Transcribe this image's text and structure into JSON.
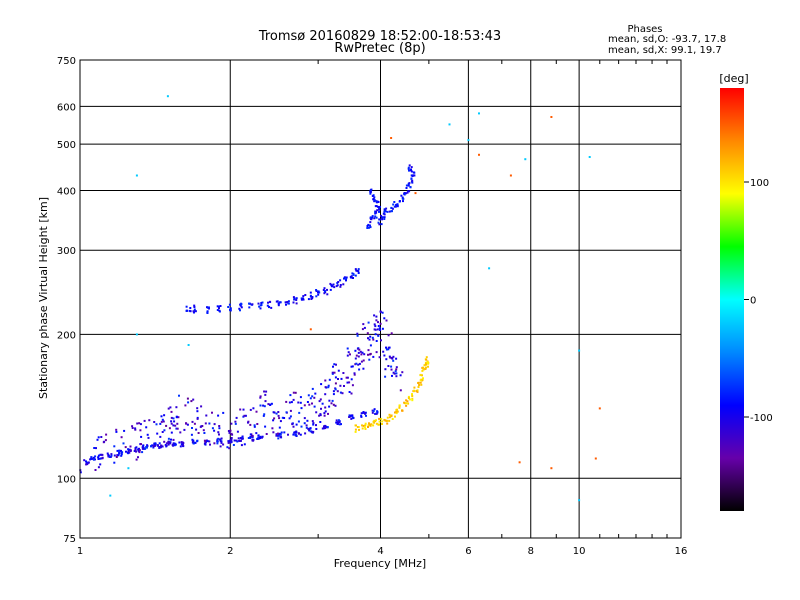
{
  "chart_data": {
    "type": "scatter",
    "title": "Tromsø 20160829 18:52:00-18:53:43",
    "subtitle": "RwPretec (8p)",
    "phases": {
      "heading": "Phases",
      "line_o": "mean, sd,O: -93.7, 17.8",
      "line_x": "mean, sd,X:  99.1, 19.7"
    },
    "xlabel": "Frequency [MHz]",
    "ylabel": "Stationary phase Virtual Height [km]",
    "xscale": "log",
    "yscale": "log",
    "xlim": [
      1,
      16
    ],
    "ylim": [
      75,
      750
    ],
    "xticks": [
      1,
      2,
      4,
      6,
      8,
      10,
      16
    ],
    "yticks": [
      75,
      100,
      200,
      300,
      400,
      500,
      600,
      750
    ],
    "grid": true,
    "colorbar": {
      "label": "[deg]",
      "range": [
        -180,
        180
      ],
      "ticks": [
        -100,
        0,
        100
      ],
      "colors": [
        "#000000",
        "#6600aa",
        "#0000ff",
        "#0088ff",
        "#00ffff",
        "#00ff00",
        "#ffff00",
        "#ff8800",
        "#ff0000"
      ]
    },
    "series": [
      {
        "shape": "dots",
        "phase": -95,
        "points": [
          [
            1.0,
            104
          ],
          [
            1.03,
            108
          ],
          [
            1.06,
            110
          ],
          [
            1.1,
            111
          ],
          [
            1.15,
            112
          ],
          [
            1.2,
            113
          ],
          [
            1.25,
            114
          ],
          [
            1.3,
            115
          ],
          [
            1.35,
            116
          ],
          [
            1.4,
            117
          ],
          [
            1.45,
            117
          ],
          [
            1.5,
            118
          ],
          [
            1.55,
            118
          ],
          [
            1.6,
            118
          ],
          [
            1.7,
            119
          ],
          [
            1.8,
            119
          ],
          [
            1.9,
            120
          ],
          [
            2.0,
            120
          ],
          [
            2.1,
            121
          ],
          [
            2.2,
            121
          ],
          [
            2.3,
            122
          ],
          [
            2.5,
            123
          ],
          [
            2.7,
            124
          ],
          [
            2.9,
            126
          ],
          [
            3.1,
            128
          ],
          [
            3.3,
            131
          ],
          [
            3.5,
            134
          ],
          [
            3.7,
            136
          ],
          [
            3.9,
            138
          ]
        ]
      },
      {
        "shape": "spread",
        "phase": -105,
        "points": [
          [
            1.1,
            114
          ],
          [
            1.2,
            117
          ],
          [
            1.3,
            120
          ],
          [
            1.35,
            122
          ],
          [
            1.45,
            125
          ],
          [
            1.5,
            128
          ],
          [
            1.55,
            132
          ],
          [
            1.6,
            138
          ],
          [
            1.7,
            135
          ],
          [
            1.8,
            130
          ],
          [
            1.9,
            126
          ],
          [
            2.0,
            124
          ],
          [
            2.1,
            128
          ],
          [
            2.2,
            132
          ],
          [
            2.3,
            140
          ],
          [
            2.4,
            136
          ],
          [
            2.5,
            131
          ],
          [
            2.6,
            135
          ],
          [
            2.7,
            140
          ],
          [
            2.8,
            134
          ],
          [
            2.9,
            138
          ],
          [
            3.0,
            142
          ],
          [
            3.1,
            148
          ],
          [
            3.2,
            155
          ],
          [
            3.3,
            160
          ],
          [
            3.4,
            165
          ],
          [
            3.5,
            172
          ],
          [
            3.6,
            178
          ],
          [
            3.7,
            185
          ],
          [
            3.8,
            195
          ],
          [
            3.9,
            200
          ],
          [
            4.0,
            205
          ],
          [
            4.1,
            190
          ],
          [
            4.2,
            175
          ],
          [
            4.3,
            165
          ]
        ]
      },
      {
        "shape": "trace",
        "phase": 110,
        "points": [
          [
            3.6,
            127
          ],
          [
            3.7,
            128
          ],
          [
            3.8,
            129
          ],
          [
            3.9,
            130
          ],
          [
            4.0,
            131
          ],
          [
            4.1,
            132
          ],
          [
            4.2,
            134
          ],
          [
            4.3,
            137
          ],
          [
            4.4,
            140
          ],
          [
            4.5,
            144
          ],
          [
            4.6,
            148
          ],
          [
            4.7,
            153
          ],
          [
            4.8,
            158
          ],
          [
            4.85,
            163
          ],
          [
            4.9,
            168
          ],
          [
            4.95,
            172
          ],
          [
            4.95,
            176
          ]
        ]
      },
      {
        "shape": "trace",
        "phase": -90,
        "points": [
          [
            1.65,
            227
          ],
          [
            1.7,
            226
          ],
          [
            1.8,
            225
          ],
          [
            1.9,
            226
          ],
          [
            2.0,
            227
          ],
          [
            2.1,
            228
          ],
          [
            2.2,
            229
          ],
          [
            2.3,
            230
          ],
          [
            2.4,
            231
          ],
          [
            2.5,
            232
          ],
          [
            2.6,
            234
          ],
          [
            2.7,
            236
          ],
          [
            2.8,
            238
          ],
          [
            2.9,
            241
          ],
          [
            3.0,
            244
          ],
          [
            3.1,
            247
          ],
          [
            3.2,
            251
          ],
          [
            3.3,
            255
          ],
          [
            3.4,
            259
          ],
          [
            3.5,
            264
          ],
          [
            3.6,
            270
          ]
        ]
      },
      {
        "shape": "trace",
        "phase": -90,
        "points": [
          [
            3.8,
            340
          ],
          [
            3.85,
            348
          ],
          [
            3.9,
            356
          ],
          [
            3.95,
            365
          ],
          [
            3.95,
            375
          ],
          [
            3.9,
            385
          ],
          [
            3.85,
            395
          ],
          [
            4.0,
            345
          ],
          [
            4.05,
            355
          ],
          [
            4.1,
            362
          ],
          [
            4.2,
            368
          ],
          [
            4.3,
            376
          ],
          [
            4.4,
            384
          ],
          [
            4.5,
            392
          ],
          [
            4.55,
            405
          ],
          [
            4.6,
            420
          ],
          [
            4.65,
            435
          ],
          [
            4.6,
            445
          ]
        ]
      },
      {
        "shape": "isolated",
        "phase": -20,
        "points": [
          [
            1.5,
            630
          ],
          [
            1.3,
            430
          ],
          [
            5.5,
            550
          ],
          [
            6.0,
            510
          ],
          [
            6.3,
            580
          ],
          [
            6.6,
            275
          ],
          [
            7.8,
            465
          ],
          [
            10.5,
            470
          ],
          [
            10.0,
            185
          ],
          [
            10.0,
            90
          ],
          [
            1.15,
            92
          ],
          [
            1.25,
            105
          ],
          [
            1.3,
            200
          ],
          [
            1.65,
            190
          ]
        ]
      },
      {
        "shape": "isolated",
        "phase": 150,
        "points": [
          [
            8.8,
            570
          ],
          [
            7.3,
            430
          ],
          [
            7.6,
            108
          ],
          [
            8.8,
            105
          ],
          [
            6.3,
            475
          ],
          [
            4.7,
            395
          ],
          [
            4.2,
            515
          ],
          [
            11.0,
            140
          ],
          [
            10.8,
            110
          ],
          [
            2.9,
            205
          ]
        ]
      }
    ]
  }
}
